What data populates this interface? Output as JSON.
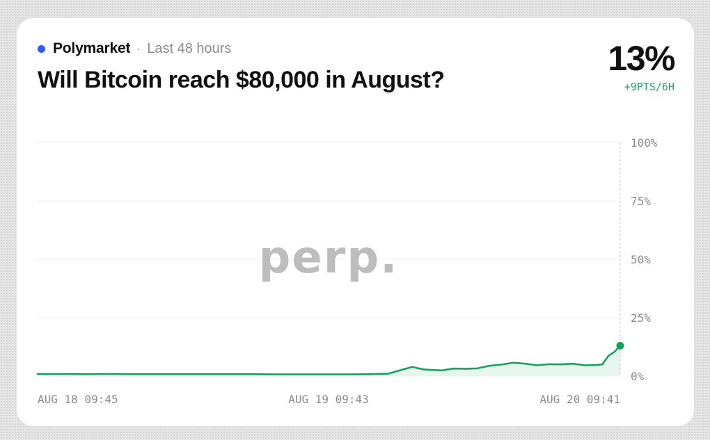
{
  "header": {
    "source": "Polymarket",
    "separator": "·",
    "period": "Last 48 hours",
    "question": "Will Bitcoin reach $80,000 in August?",
    "current_value": "13%",
    "change": "+9PTS/6H"
  },
  "watermark": "perp.",
  "colors": {
    "source_dot": "#2d5ff5",
    "line": "#18a05e",
    "area": "#e6f6ee",
    "change": "#1fa463"
  },
  "chart_data": {
    "type": "area",
    "title": "Will Bitcoin reach $80,000 in August?",
    "x_ticks": [
      "AUG 18 09:45",
      "AUG 19 09:43",
      "AUG 20 09:41"
    ],
    "y_ticks": [
      "100%",
      "75%",
      "50%",
      "25%",
      "0%"
    ],
    "ylim": [
      0,
      100
    ],
    "y_axis_side": "right",
    "grid": true,
    "x_unit": "hours",
    "series": [
      {
        "name": "",
        "x": [
          0,
          2,
          4,
          6,
          8,
          10,
          12,
          14,
          16,
          18,
          20,
          22,
          24,
          26,
          28,
          29.5,
          30.5,
          31.5,
          32.5,
          34,
          35,
          36,
          37,
          38,
          39,
          40,
          41,
          42,
          43,
          44,
          45,
          46,
          47,
          47.5,
          48,
          48.5,
          49
        ],
        "y": [
          0.9,
          0.9,
          0.8,
          0.9,
          0.8,
          0.8,
          0.8,
          0.8,
          0.8,
          0.8,
          0.7,
          0.7,
          0.7,
          0.7,
          0.8,
          1.0,
          2.5,
          3.9,
          2.8,
          2.4,
          3.2,
          3.1,
          3.3,
          4.4,
          4.9,
          5.7,
          5.3,
          4.6,
          5.1,
          5.0,
          5.3,
          4.6,
          4.7,
          5.0,
          8.6,
          10.3,
          13.0
        ]
      }
    ]
  }
}
